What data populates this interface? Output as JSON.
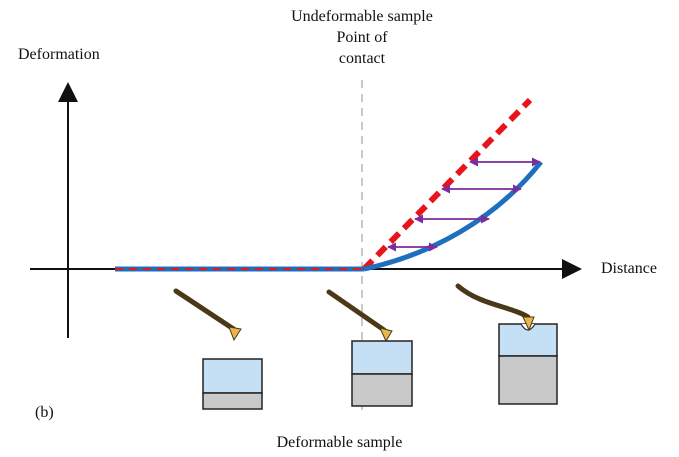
{
  "labels": {
    "top_line1": "Undeformable sample",
    "top_line2": "Point of",
    "top_line3": "contact",
    "y_axis": "Deformation",
    "x_axis": "Distance",
    "panel": "(b)",
    "bottom": "Deformable sample"
  },
  "colors": {
    "axis": "#111111",
    "undeformable_line": "#e8141b",
    "deformable_curve": "#1f6fbf",
    "indentation_arrows": "#7b2c9e",
    "contact_dashline": "#c8c8c8",
    "cantilever": "#4a3818",
    "tip": "#e8b64a",
    "sample_top": "#c5e0f5",
    "sample_base": "#c9c9c9"
  }
}
